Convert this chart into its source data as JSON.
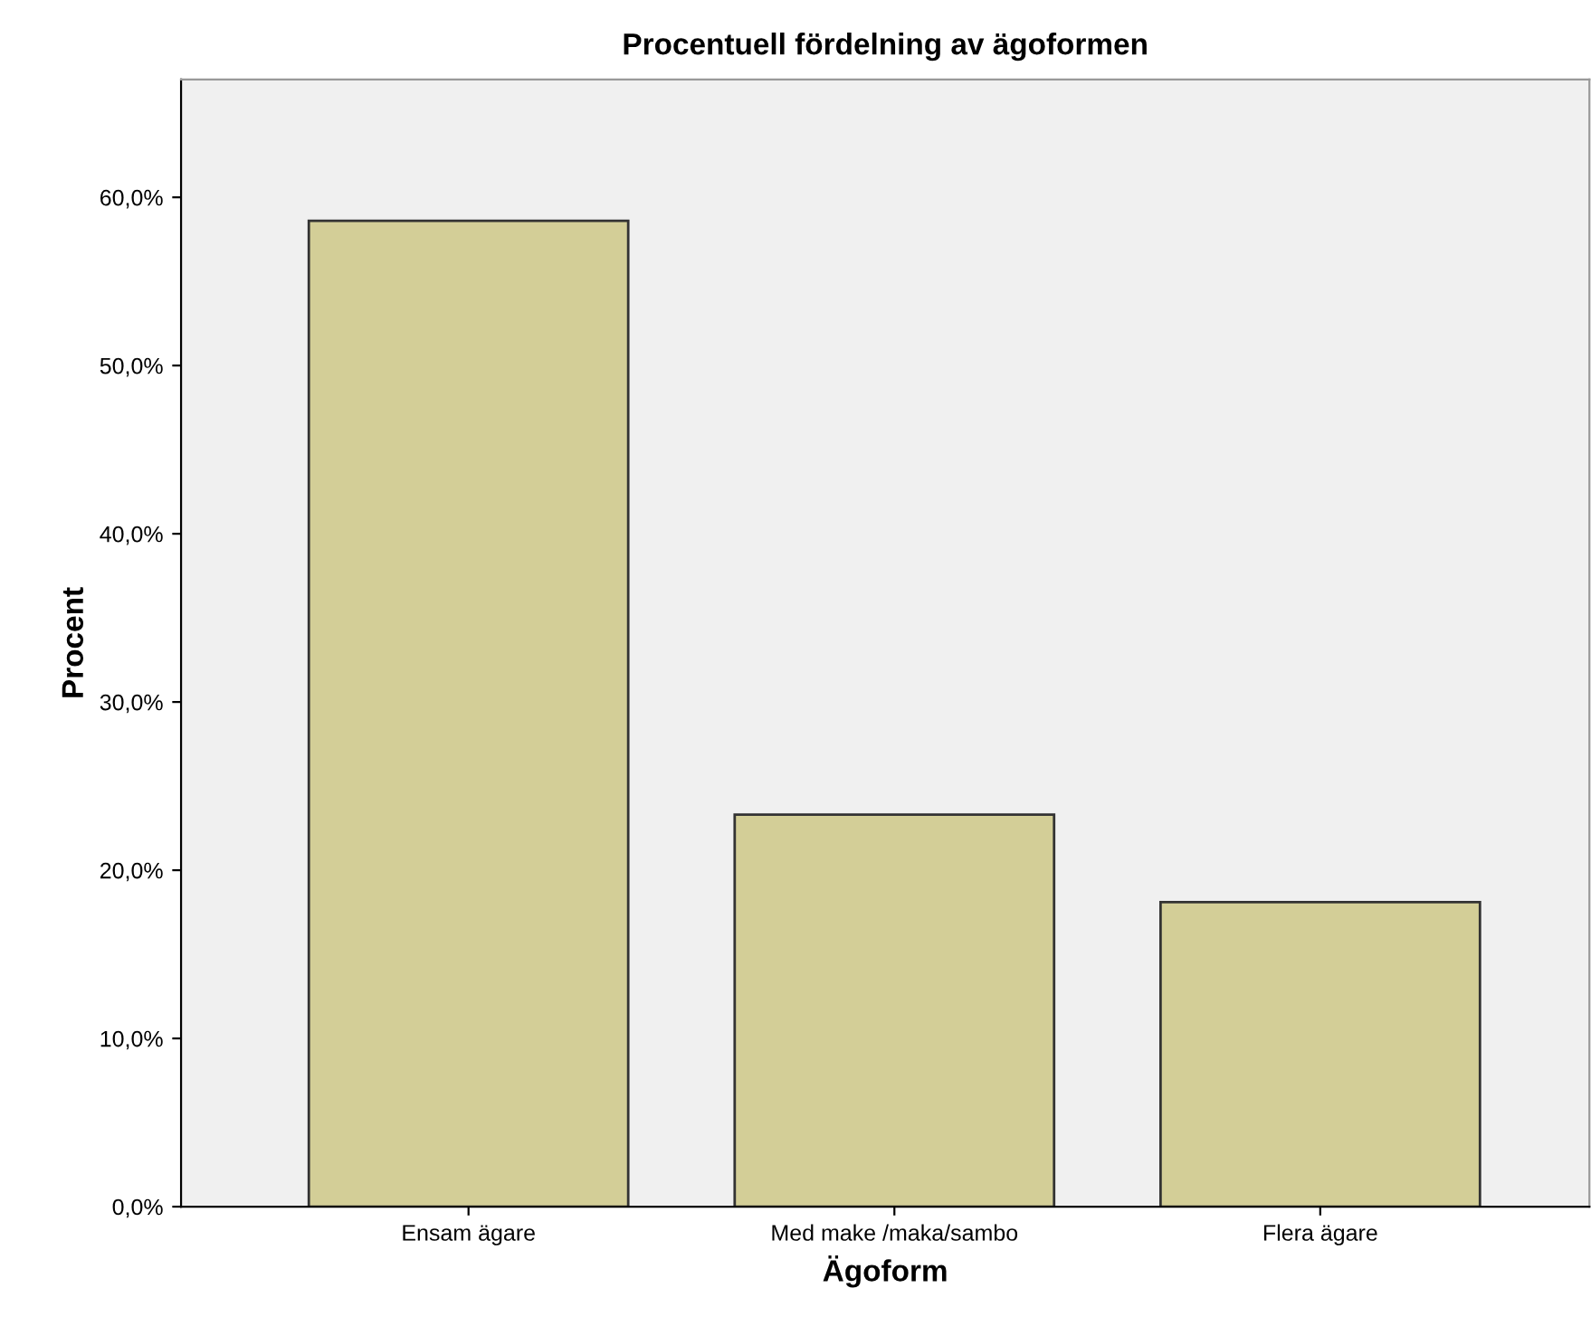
{
  "chart_data": {
    "type": "bar",
    "title": "Procentuell fördelning av ägoformen",
    "xlabel": "Ägoform",
    "ylabel": "Procent",
    "categories": [
      "Ensam ägare",
      "Med make /maka/sambo",
      "Flera ägare"
    ],
    "values": [
      58.6,
      23.3,
      18.1
    ],
    "color": "#d3ce97",
    "ylim": [
      0,
      67
    ],
    "yticks": [
      {
        "value": 0,
        "label": "0,0%"
      },
      {
        "value": 10,
        "label": "10,0%"
      },
      {
        "value": 20,
        "label": "20,0%"
      },
      {
        "value": 30,
        "label": "30,0%"
      },
      {
        "value": 40,
        "label": "40,0%"
      },
      {
        "value": 50,
        "label": "50,0%"
      },
      {
        "value": 60,
        "label": "60,0%"
      }
    ],
    "grid": false,
    "legend": false
  }
}
